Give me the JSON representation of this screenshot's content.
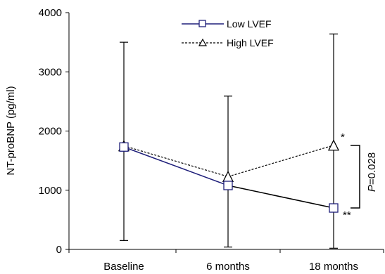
{
  "chart_data": {
    "type": "line",
    "ylabel": "NT-proBNP (pg/ml)",
    "xlabel": "",
    "ylim": [
      0,
      4000
    ],
    "yticks": [
      0,
      1000,
      2000,
      3000,
      4000
    ],
    "categories": [
      "Baseline",
      "6 months",
      "18 months"
    ],
    "grid": false,
    "legend_position": "top-center",
    "series": [
      {
        "name": "Low LVEF",
        "marker": "square",
        "line_style": "solid",
        "color": "#1f1f7a",
        "values": [
          1730,
          1080,
          700
        ],
        "error_low": [
          150,
          40,
          20
        ],
        "error_high": [
          3500,
          2590,
          3640
        ]
      },
      {
        "name": "High LVEF",
        "marker": "triangle",
        "line_style": "dashed",
        "color": "#000000",
        "values": [
          1750,
          1230,
          1760
        ],
        "error_low": [
          null,
          null,
          null
        ],
        "error_high": [
          null,
          null,
          null
        ]
      }
    ],
    "annotations": {
      "high_18m": "*",
      "low_18m": "**",
      "p_label": "P",
      "p_value": "=0.028"
    }
  }
}
